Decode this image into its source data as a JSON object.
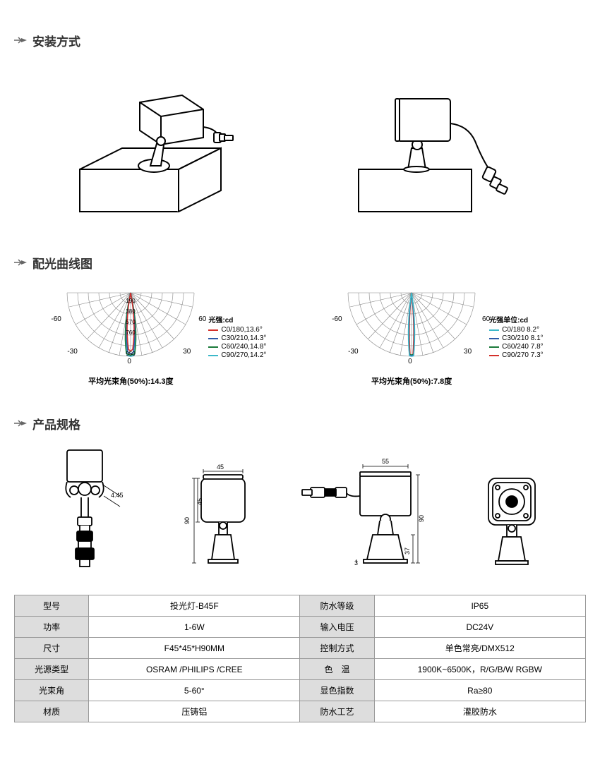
{
  "sections": {
    "install": "安装方式",
    "curve": "配光曲线图",
    "spec": "产品规格"
  },
  "polar1": {
    "angles": {
      "left60": "-60",
      "right60": "60",
      "left30": "-30",
      "right30": "30",
      "zero": "0"
    },
    "rings": [
      "190",
      "380",
      "570",
      "760",
      "950"
    ],
    "legend_title": "光强:cd",
    "legend": [
      {
        "color": "#d4302b",
        "label": "C0/180,13.6°"
      },
      {
        "color": "#2d5aa8",
        "label": "C30/210,14.3°"
      },
      {
        "color": "#1a7a3a",
        "label": "C60/240,14.8°"
      },
      {
        "color": "#3cb8c9",
        "label": "C90/270,14.2°"
      }
    ],
    "caption": "平均光束角(50%):14.3度"
  },
  "polar2": {
    "angles": {
      "left60": "-60",
      "right60": "60",
      "left30": "-30",
      "right30": "30",
      "zero": "0"
    },
    "legend_title": "光强单位:cd",
    "legend": [
      {
        "color": "#3cb8c9",
        "label": "C0/180 8.2°"
      },
      {
        "color": "#2d5aa8",
        "label": "C30/210 8.1°"
      },
      {
        "color": "#1a7a3a",
        "label": "C60/240 7.8°"
      },
      {
        "color": "#d4302b",
        "label": "C90/270 7.3°"
      }
    ],
    "caption": "平均光束角(50%):7.8度"
  },
  "dims": {
    "w45": "45",
    "h90": "90",
    "d45": "4.45",
    "w55": "55",
    "h37": "37",
    "b3": "3",
    "sh45": "45"
  },
  "spec_table": {
    "rows": [
      {
        "l1": "型号",
        "v1": "投光灯-B45F",
        "l2": "防水等级",
        "v2": "IP65"
      },
      {
        "l1": "功率",
        "v1": "1-6W",
        "l2": "输入电压",
        "v2": "DC24V"
      },
      {
        "l1": "尺寸",
        "v1": "F45*45*H90MM",
        "l2": "控制方式",
        "v2": "单色常亮/DMX512"
      },
      {
        "l1": "光源类型",
        "v1": "OSRAM /PHILIPS /CREE",
        "l2": "色　温",
        "v2": "1900K~6500K，R/G/B/W  RGBW"
      },
      {
        "l1": "光束角",
        "v1": "5-60°",
        "l2": "显色指数",
        "v2": "Ra≥80"
      },
      {
        "l1": "材质",
        "v1": "压铸铝",
        "l2": "防水工艺",
        "v2": "灌胶防水"
      }
    ]
  },
  "style": {
    "arrow_color": "#666",
    "line_color": "#000",
    "grid_color": "#888"
  }
}
